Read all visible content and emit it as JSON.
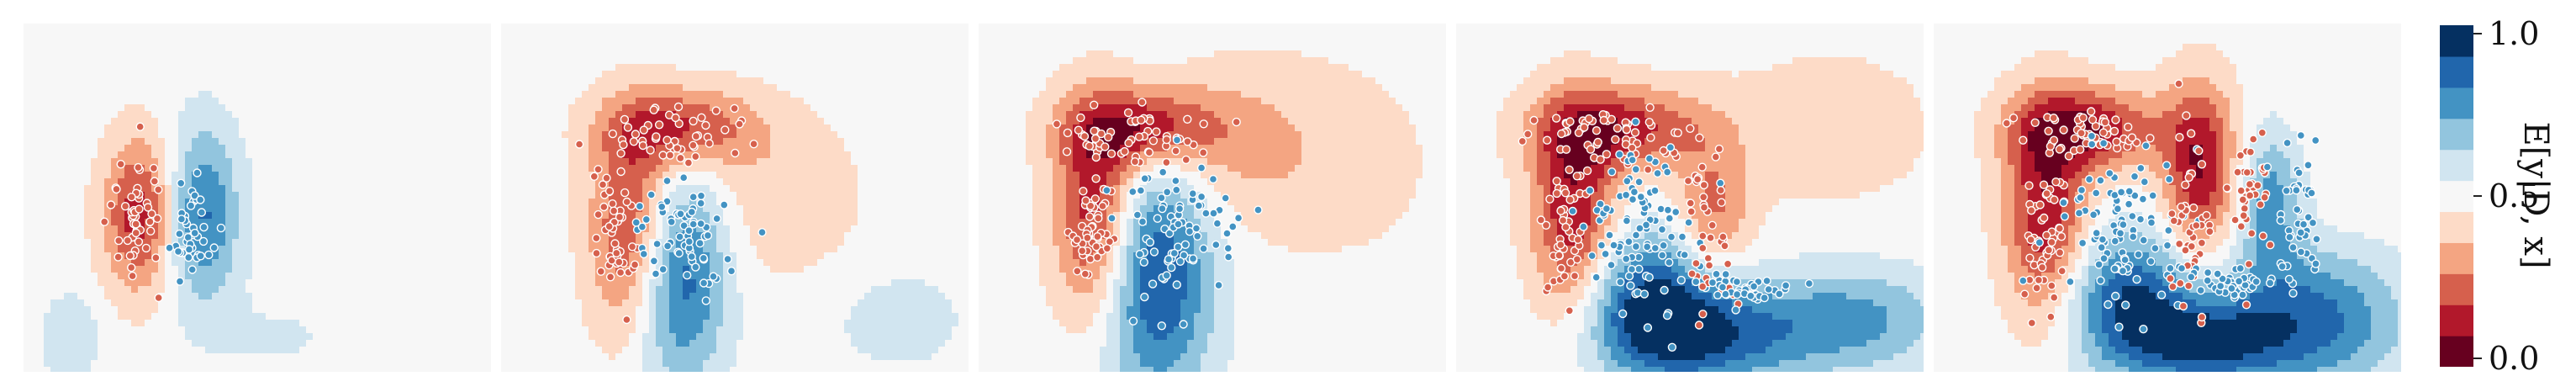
{
  "chart_data": {
    "type": "heatmap",
    "description_kind": "filled contour panels with scattered points",
    "colormap": [
      "#67001f",
      "#b2182b",
      "#d6604d",
      "#f4a582",
      "#fddbc7",
      "#f7f7f7",
      "#d1e5f0",
      "#92c5de",
      "#4393c3",
      "#2166ac",
      "#053061"
    ],
    "colorbar": {
      "label": "E[y|D, x]",
      "range": [
        0.0,
        1.0
      ],
      "ticks": [
        {
          "value": 0.0,
          "label": "0.0"
        },
        {
          "value": 0.5,
          "label": "0.5"
        },
        {
          "value": 1.0,
          "label": "1.0"
        }
      ]
    },
    "panels": [
      {
        "blobs": [
          {
            "cx": 0.25,
            "cy": 0.55,
            "rx": 0.08,
            "ry": 0.22,
            "v": -0.42
          },
          {
            "cx": 0.38,
            "cy": 0.55,
            "rx": 0.08,
            "ry": 0.25,
            "v": 0.38
          },
          {
            "cx": 0.1,
            "cy": 0.9,
            "rx": 0.06,
            "ry": 0.12,
            "v": 0.15
          },
          {
            "cx": 0.55,
            "cy": 0.9,
            "rx": 0.15,
            "ry": 0.12,
            "v": 0.06
          }
        ],
        "clusters": [
          {
            "label": 0,
            "cx": 0.24,
            "cy": 0.56,
            "sx": 0.025,
            "sy": 0.09,
            "n": 50
          },
          {
            "label": 1,
            "cx": 0.36,
            "cy": 0.58,
            "sx": 0.025,
            "sy": 0.07,
            "n": 40
          }
        ]
      },
      {
        "blobs": [
          {
            "cx": 0.28,
            "cy": 0.6,
            "rx": 0.09,
            "ry": 0.3,
            "v": -0.42
          },
          {
            "cx": 0.38,
            "cy": 0.3,
            "rx": 0.16,
            "ry": 0.12,
            "v": -0.38
          },
          {
            "cx": 0.38,
            "cy": 0.72,
            "rx": 0.1,
            "ry": 0.3,
            "v": 0.45
          },
          {
            "cx": 0.6,
            "cy": 0.5,
            "rx": 0.18,
            "ry": 0.25,
            "v": -0.12
          },
          {
            "cx": 0.85,
            "cy": 0.85,
            "rx": 0.15,
            "ry": 0.15,
            "v": 0.1
          }
        ],
        "clusters": [
          {
            "label": 0,
            "cx": 0.24,
            "cy": 0.62,
            "sx": 0.025,
            "sy": 0.1,
            "n": 50
          },
          {
            "label": 0,
            "cx": 0.38,
            "cy": 0.32,
            "sx": 0.08,
            "sy": 0.04,
            "n": 50
          },
          {
            "label": 1,
            "cx": 0.4,
            "cy": 0.62,
            "sx": 0.05,
            "sy": 0.09,
            "n": 65
          }
        ]
      },
      {
        "blobs": [
          {
            "cx": 0.25,
            "cy": 0.55,
            "rx": 0.09,
            "ry": 0.3,
            "v": -0.45
          },
          {
            "cx": 0.35,
            "cy": 0.3,
            "rx": 0.16,
            "ry": 0.12,
            "v": -0.42
          },
          {
            "cx": 0.38,
            "cy": 0.72,
            "rx": 0.12,
            "ry": 0.35,
            "v": 0.48
          },
          {
            "cx": 0.55,
            "cy": 0.35,
            "rx": 0.2,
            "ry": 0.25,
            "v": -0.15
          },
          {
            "cx": 0.8,
            "cy": 0.4,
            "rx": 0.2,
            "ry": 0.3,
            "v": -0.08
          }
        ],
        "clusters": [
          {
            "label": 0,
            "cx": 0.24,
            "cy": 0.6,
            "sx": 0.025,
            "sy": 0.1,
            "n": 50
          },
          {
            "label": 0,
            "cx": 0.34,
            "cy": 0.32,
            "sx": 0.09,
            "sy": 0.04,
            "n": 60
          },
          {
            "label": 1,
            "cx": 0.42,
            "cy": 0.58,
            "sx": 0.06,
            "sy": 0.11,
            "n": 80
          }
        ]
      },
      {
        "blobs": [
          {
            "cx": 0.25,
            "cy": 0.55,
            "rx": 0.09,
            "ry": 0.3,
            "v": -0.45
          },
          {
            "cx": 0.35,
            "cy": 0.3,
            "rx": 0.18,
            "ry": 0.12,
            "v": -0.4
          },
          {
            "cx": 0.42,
            "cy": 0.8,
            "rx": 0.15,
            "ry": 0.2,
            "v": 0.45
          },
          {
            "cx": 0.55,
            "cy": 0.55,
            "rx": 0.08,
            "ry": 0.2,
            "v": -0.28
          },
          {
            "cx": 0.55,
            "cy": 0.9,
            "rx": 0.2,
            "ry": 0.15,
            "v": 0.35
          },
          {
            "cx": 0.85,
            "cy": 0.85,
            "rx": 0.2,
            "ry": 0.15,
            "v": 0.28
          },
          {
            "cx": 0.8,
            "cy": 0.3,
            "rx": 0.25,
            "ry": 0.25,
            "v": -0.1
          }
        ],
        "clusters": [
          {
            "label": 0,
            "cx": 0.24,
            "cy": 0.6,
            "sx": 0.025,
            "sy": 0.1,
            "n": 50
          },
          {
            "label": 0,
            "cx": 0.34,
            "cy": 0.32,
            "sx": 0.09,
            "sy": 0.04,
            "n": 60
          },
          {
            "label": 1,
            "cx": 0.4,
            "cy": 0.62,
            "sx": 0.06,
            "sy": 0.12,
            "n": 100
          },
          {
            "label": 0,
            "cx": 0.54,
            "cy": 0.6,
            "sx": 0.025,
            "sy": 0.12,
            "n": 40
          },
          {
            "label": 1,
            "cx": 0.62,
            "cy": 0.76,
            "sx": 0.06,
            "sy": 0.02,
            "n": 40
          }
        ]
      },
      {
        "blobs": [
          {
            "cx": 0.24,
            "cy": 0.55,
            "rx": 0.09,
            "ry": 0.3,
            "v": -0.45
          },
          {
            "cx": 0.33,
            "cy": 0.3,
            "rx": 0.16,
            "ry": 0.12,
            "v": -0.42
          },
          {
            "cx": 0.42,
            "cy": 0.8,
            "rx": 0.14,
            "ry": 0.2,
            "v": 0.45
          },
          {
            "cx": 0.57,
            "cy": 0.42,
            "rx": 0.08,
            "ry": 0.25,
            "v": -0.45
          },
          {
            "cx": 0.58,
            "cy": 0.92,
            "rx": 0.15,
            "ry": 0.12,
            "v": 0.38
          },
          {
            "cx": 0.8,
            "cy": 0.85,
            "rx": 0.2,
            "ry": 0.2,
            "v": 0.4
          },
          {
            "cx": 0.72,
            "cy": 0.5,
            "rx": 0.07,
            "ry": 0.2,
            "v": 0.3
          },
          {
            "cx": 0.9,
            "cy": 0.35,
            "rx": 0.15,
            "ry": 0.25,
            "v": -0.05
          }
        ],
        "clusters": [
          {
            "label": 0,
            "cx": 0.24,
            "cy": 0.6,
            "sx": 0.025,
            "sy": 0.1,
            "n": 50
          },
          {
            "label": 0,
            "cx": 0.33,
            "cy": 0.32,
            "sx": 0.08,
            "sy": 0.04,
            "n": 55
          },
          {
            "label": 1,
            "cx": 0.4,
            "cy": 0.6,
            "sx": 0.06,
            "sy": 0.12,
            "n": 100
          },
          {
            "label": 0,
            "cx": 0.55,
            "cy": 0.58,
            "sx": 0.025,
            "sy": 0.12,
            "n": 45
          },
          {
            "label": 1,
            "cx": 0.63,
            "cy": 0.74,
            "sx": 0.05,
            "sy": 0.02,
            "n": 40
          },
          {
            "label": 0,
            "cx": 0.68,
            "cy": 0.48,
            "sx": 0.025,
            "sy": 0.1,
            "n": 40
          },
          {
            "label": 1,
            "cx": 0.78,
            "cy": 0.52,
            "sx": 0.025,
            "sy": 0.12,
            "n": 45
          }
        ]
      }
    ]
  }
}
